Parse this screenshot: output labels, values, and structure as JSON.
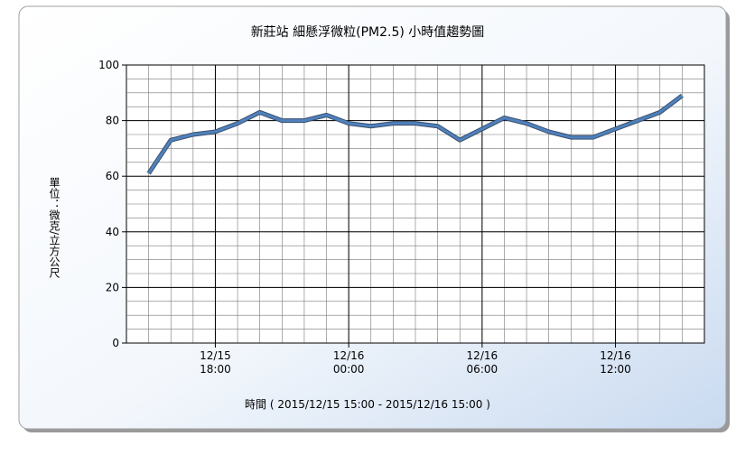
{
  "chart_data": {
    "type": "line",
    "title": "新莊站  細懸浮微粒(PM2.5) 小時值趨勢圖",
    "x_label": "時間 ( 2015/12/15 15:00 - 2015/12/16 15:00 )",
    "y_label": "單位：微克/立方公尺",
    "x": [
      "2015-12-15T15:00",
      "2015-12-15T16:00",
      "2015-12-15T17:00",
      "2015-12-15T18:00",
      "2015-12-15T19:00",
      "2015-12-15T20:00",
      "2015-12-15T21:00",
      "2015-12-15T22:00",
      "2015-12-15T23:00",
      "2015-12-16T00:00",
      "2015-12-16T01:00",
      "2015-12-16T02:00",
      "2015-12-16T03:00",
      "2015-12-16T04:00",
      "2015-12-16T05:00",
      "2015-12-16T06:00",
      "2015-12-16T07:00",
      "2015-12-16T08:00",
      "2015-12-16T09:00",
      "2015-12-16T10:00",
      "2015-12-16T11:00",
      "2015-12-16T12:00",
      "2015-12-16T13:00",
      "2015-12-16T14:00",
      "2015-12-16T15:00"
    ],
    "series": [
      {
        "name": "PM2.5",
        "color": "#4f81bd",
        "values": [
          61,
          73,
          75,
          76,
          79,
          83,
          80,
          80,
          82,
          79,
          78,
          79,
          79,
          78,
          73,
          77,
          81,
          79,
          76,
          74,
          74,
          77,
          80,
          83,
          89
        ]
      }
    ],
    "xlim": [
      "2015-12-15T14:00",
      "2015-12-16T16:00"
    ],
    "xticks": [
      {
        "value": "2015-12-15T18:00",
        "label": "12/15\n18:00"
      },
      {
        "value": "2015-12-16T00:00",
        "label": "12/16\n00:00"
      },
      {
        "value": "2015-12-16T06:00",
        "label": "12/16\n06:00"
      },
      {
        "value": "2015-12-16T12:00",
        "label": "12/16\n12:00"
      }
    ],
    "ylim": [
      0,
      100
    ],
    "yticks": [
      0,
      20,
      40,
      60,
      80,
      100
    ],
    "grid": true,
    "minor_grid": true,
    "legend": false
  }
}
